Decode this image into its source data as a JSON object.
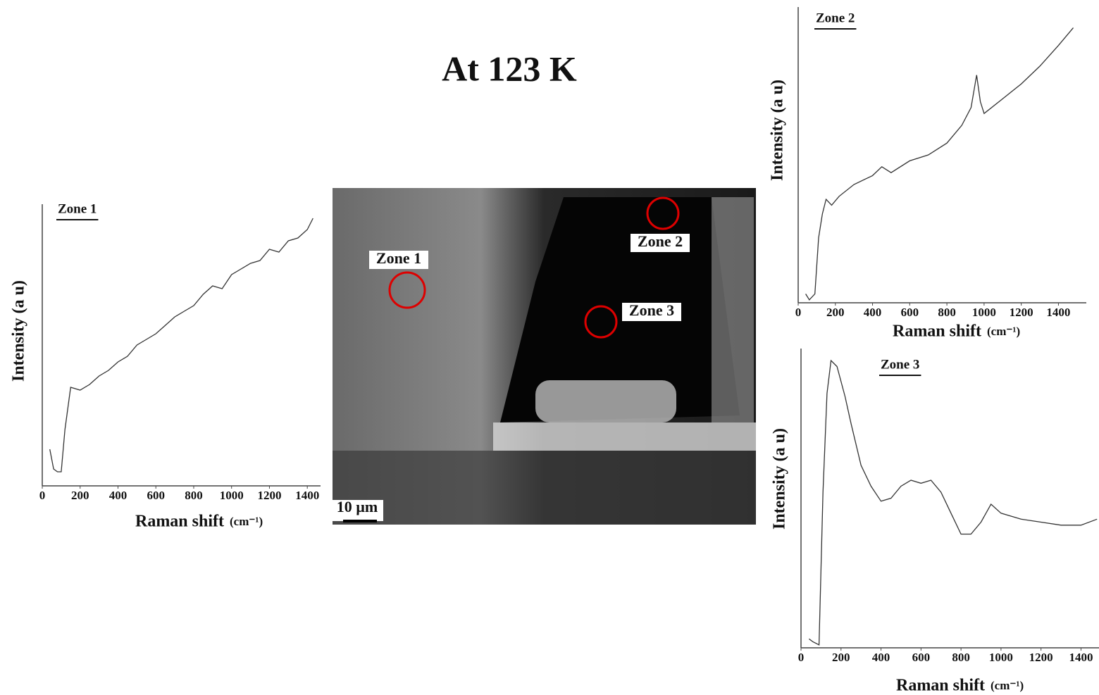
{
  "title": "At 123 K",
  "image": {
    "zone_labels": [
      "Zone 1",
      "Zone 2",
      "Zone 3"
    ],
    "scale_bar": "10 µm"
  },
  "chart_data": [
    {
      "type": "line",
      "title": "Zone 1",
      "x_label": "Raman shift",
      "x_unit": "(cm⁻¹)",
      "y_label": "Intensity (a u)",
      "color": "#333333",
      "x": [
        40,
        60,
        80,
        100,
        120,
        150,
        200,
        250,
        300,
        350,
        400,
        450,
        500,
        550,
        600,
        650,
        700,
        750,
        800,
        850,
        900,
        950,
        1000,
        1050,
        1100,
        1150,
        1200,
        1250,
        1300,
        1350,
        1400,
        1430
      ],
      "values": [
        13,
        6,
        5,
        5,
        20,
        35,
        34,
        36,
        39,
        41,
        44,
        46,
        50,
        52,
        54,
        57,
        60,
        62,
        64,
        68,
        71,
        70,
        75,
        77,
        79,
        80,
        84,
        83,
        87,
        88,
        91,
        95
      ],
      "xlim": [
        0,
        1470
      ],
      "ylim": [
        0,
        100
      ],
      "xticks": [
        0,
        200,
        400,
        600,
        800,
        1000,
        1200,
        1400
      ]
    },
    {
      "type": "line",
      "title": "Zone 2",
      "x_label": "Raman shift",
      "x_unit": "(cm⁻¹)",
      "y_label": "Intensity (a u)",
      "color": "#333333",
      "x": [
        40,
        60,
        90,
        110,
        130,
        150,
        180,
        220,
        300,
        400,
        450,
        500,
        600,
        700,
        800,
        880,
        930,
        960,
        980,
        1000,
        1100,
        1200,
        1300,
        1400,
        1480
      ],
      "values": [
        3,
        1,
        3,
        22,
        30,
        35,
        33,
        36,
        40,
        43,
        46,
        44,
        48,
        50,
        54,
        60,
        66,
        77,
        68,
        64,
        69,
        74,
        80,
        87,
        93
      ],
      "xlim": [
        0,
        1550
      ],
      "ylim": [
        0,
        100
      ],
      "xticks": [
        0,
        200,
        400,
        600,
        800,
        1000,
        1200,
        1400
      ]
    },
    {
      "type": "line",
      "title": "Zone 3",
      "x_label": "Raman shift",
      "x_unit": "(cm⁻¹)",
      "y_label": "Intensity (a u)",
      "color": "#333333",
      "x": [
        40,
        60,
        90,
        110,
        130,
        150,
        180,
        220,
        250,
        300,
        350,
        400,
        450,
        500,
        550,
        600,
        650,
        700,
        750,
        800,
        850,
        900,
        950,
        1000,
        1100,
        1200,
        1300,
        1400,
        1480
      ],
      "values": [
        3,
        2,
        1,
        52,
        85,
        96,
        94,
        84,
        75,
        61,
        54,
        49,
        50,
        54,
        56,
        55,
        56,
        52,
        45,
        38,
        38,
        42,
        48,
        45,
        43,
        42,
        41,
        41,
        43
      ],
      "xlim": [
        0,
        1490
      ],
      "ylim": [
        0,
        100
      ],
      "xticks": [
        0,
        200,
        400,
        600,
        800,
        1000,
        1200,
        1400
      ]
    }
  ]
}
